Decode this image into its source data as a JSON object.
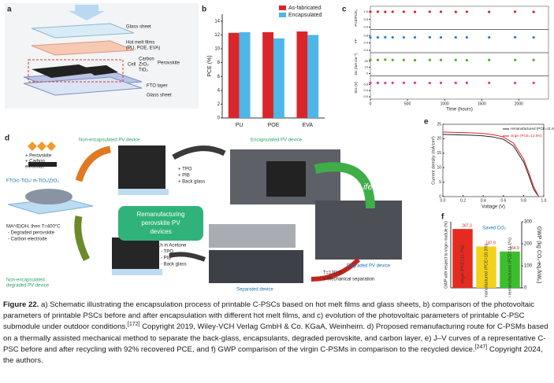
{
  "illustrations": {
    "a": {
      "label": "a",
      "texts": [
        "Glass sheet",
        "Hot melt films",
        "(PU, POE, EVA)",
        "Carbon",
        "ZrO₂",
        "TiO₂",
        "Cell",
        "Perovskite",
        "FTO layer",
        "Glass sheet"
      ]
    },
    "d": {
      "label": "d",
      "texts": [
        "+ Perovskite",
        "+ Carbon",
        "electrode",
        "Non-encapsulated PV device",
        "FTO/c-TiO₂/ m-TiO₂/ZrO₂",
        "+ TPO",
        "+ PIB",
        "+ Back glass",
        "Encapsulated PV device",
        "Life",
        "Remanufacturing",
        "perovskite PV",
        "devices",
        "Degraded PV device",
        "T=130°C",
        "+ Mechanical separation",
        "Separated device",
        "1h in Acetone",
        "- TPO",
        "- PIB",
        "- Back glass",
        "MAᴬ/EtOH, then T=400°C",
        "- Degraded perovskite",
        "- Carbon electrode",
        "Non-encapsulated",
        "degraded PV device"
      ]
    }
  },
  "chart_data": [
    {
      "panel": "b",
      "type": "bar",
      "ylabel": "PCE (%)",
      "categories": [
        "PU",
        "POE",
        "EVA"
      ],
      "series": [
        {
          "name": "As-fabricated",
          "color": "#d9262b",
          "values": [
            12.3,
            12.4,
            12.5
          ]
        },
        {
          "name": "Encapsulated",
          "color": "#4fb6e8",
          "values": [
            12.4,
            11.5,
            12.0
          ]
        }
      ],
      "ylim": [
        0,
        15
      ],
      "yticks": [
        0,
        2,
        4,
        6,
        8,
        10,
        12,
        14
      ]
    },
    {
      "panel": "c",
      "type": "scatter",
      "xlabel": "Time (hours)",
      "x": [
        0,
        100,
        200,
        300,
        450,
        600,
        800,
        950,
        1150,
        1300,
        1600,
        1950,
        2200
      ],
      "xlim": [
        0,
        2400
      ],
      "xticks": [
        0,
        500,
        1000,
        1500,
        2000
      ],
      "series": [
        {
          "name": "PCE/PCE₀",
          "color": "#d9262b",
          "ylim": [
            0,
            1.2
          ],
          "yticks": [
            {
              "value": 0,
              "label": "0.0"
            },
            0.5,
            {
              "value": 1,
              "label": "1.0"
            }
          ],
          "values": [
            1.0,
            1.0,
            0.99,
            1.0,
            1.0,
            0.99,
            1.0,
            1.0,
            0.99,
            1.0,
            0.99,
            1.0,
            0.99
          ]
        },
        {
          "name": "FF",
          "color": "#2a7fc9",
          "ylim": [
            0,
            1
          ],
          "yticks": [
            {
              "value": 0,
              "label": "0.0"
            },
            0.4,
            0.8
          ],
          "values": [
            0.7,
            0.7,
            0.71,
            0.7,
            0.7,
            0.7,
            0.71,
            0.7,
            0.7,
            0.7,
            0.7,
            0.71,
            0.7
          ]
        },
        {
          "name": "Jsc (mA cm⁻²)",
          "color": "#5aa83a",
          "ylim": [
            0,
            30
          ],
          "yticks": [
            0,
            10,
            20
          ],
          "values": [
            22,
            22,
            22.5,
            22,
            22,
            21.5,
            22,
            22,
            22,
            21.5,
            22,
            22,
            22
          ]
        },
        {
          "name": "Voc (V)",
          "color": "#d9409a",
          "ylim": [
            0,
            1.2
          ],
          "yticks": [
            {
              "value": 0,
              "label": "0.0"
            },
            0.4,
            0.8
          ],
          "values": [
            0.9,
            0.9,
            0.89,
            0.9,
            0.9,
            0.9,
            0.89,
            0.9,
            0.9,
            0.9,
            0.9,
            0.89,
            0.9
          ]
        }
      ]
    },
    {
      "panel": "e",
      "type": "line",
      "xlabel": "Voltage (V)",
      "ylabel": "Current density (mA/cm²)",
      "x": [
        0,
        0.1,
        0.2,
        0.3,
        0.4,
        0.5,
        0.6,
        0.7,
        0.8,
        0.85,
        0.9,
        0.95
      ],
      "xlim": [
        0,
        1
      ],
      "xticks": [
        {
          "value": 0,
          "label": "0.0"
        },
        0.2,
        0.4,
        0.6,
        0.8,
        {
          "value": 1,
          "label": "1.0"
        }
      ],
      "ylim": [
        0,
        25
      ],
      "yticks": [
        0,
        5,
        10,
        15,
        20,
        25
      ],
      "series": [
        {
          "name": "remanufactured (PCE=11.5%)",
          "color": "#222222",
          "values": [
            21.5,
            21.4,
            21.3,
            21.2,
            21,
            20.6,
            19.8,
            17.5,
            12,
            7.5,
            2.5,
            0
          ]
        },
        {
          "name": "virgin (PCE=12.5%)",
          "color": "#d9262b",
          "values": [
            22.3,
            22.2,
            22.1,
            22,
            21.8,
            21.4,
            20.6,
            18.5,
            13,
            8.5,
            3.5,
            0
          ]
        }
      ]
    },
    {
      "panel": "f",
      "type": "bar",
      "ylabel": "GWP (kg CO₂-eq./kWₚ)",
      "y2label": "GWP with respect to virgin module (%)",
      "categories": [
        "Virgin (PCE=11.7%)",
        "Remanufactured (PCE=10.3%)",
        "Optimally remanufactured (PCE=11.1%)"
      ],
      "values": [
        267.3,
        187.9,
        164.9
      ],
      "value_labels": [
        "267.3",
        "187.9",
        "164.9"
      ],
      "colors": [
        "#e52b20",
        "#f2d21c",
        "#3cbf2c"
      ],
      "annotation": "Saved CO₂",
      "ylim": [
        0,
        300
      ],
      "yticks": [
        0,
        100,
        200,
        300
      ]
    }
  ],
  "caption": {
    "label": "Figure 22.",
    "text1": " a) Schematic illustrating the encapsulation process of printable C-PSCs based on hot melt films and glass sheets, b) comparison of the photovoltaic parameters of printable PSCs before and after encapsulation with different hot melt films, and c) evolution of the photovoltaic parameters of printable C-PSC submodule under outdoor conditions.",
    "ref1": "[172]",
    "text2": " Copyright 2019, Wiley-VCH Verlag GmbH & Co. KGaA, Weinheim. d) Proposed remanufacturing route for C-PSMs based on a thermally assisted mechanical method to separate the back-glass, encapsulants, degraded perovskite, and carbon layer, e) J–V curves of a representative C-PSC before and after recycling with 92% recovered PCE, and f) GWP comparison of the virgin C-PSMs in comparison to the recycled device.",
    "ref2": "[247]",
    "text3": " Copyright 2024, the authors."
  }
}
